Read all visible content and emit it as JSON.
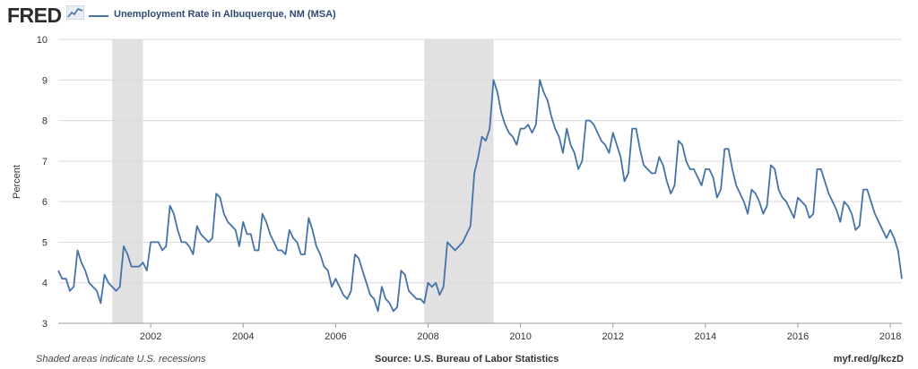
{
  "header": {
    "logo": "FRED",
    "series_title": "Unemployment Rate in Albuquerque, NM (MSA)"
  },
  "footer": {
    "note": "Shaded areas indicate U.S. recessions",
    "source": "Source: U.S. Bureau of Labor Statistics",
    "link": "myf.red/g/kczD"
  },
  "colors": {
    "line": "#4572a7",
    "recession": "#e1e1e1",
    "grid": "#d9d9d9"
  },
  "chart_data": {
    "type": "line",
    "title": "Unemployment Rate in Albuquerque, NM (MSA)",
    "xlabel": "",
    "ylabel": "Percent",
    "ylim": [
      3,
      10
    ],
    "xlim": [
      2000.0,
      2018.25
    ],
    "yticks": [
      "3",
      "4",
      "5",
      "6",
      "7",
      "8",
      "9",
      "10"
    ],
    "xticks": [
      "2002",
      "2004",
      "2006",
      "2008",
      "2010",
      "2012",
      "2014",
      "2016",
      "2018"
    ],
    "grid": true,
    "recessions": [
      [
        2001.1667,
        2001.8333
      ],
      [
        2007.9167,
        2009.4167
      ]
    ],
    "series": [
      {
        "name": "Unemployment Rate in Albuquerque, NM (MSA)",
        "start": 2000.0,
        "step_months": 1,
        "values": [
          4.3,
          4.1,
          4.1,
          3.8,
          3.9,
          4.8,
          4.5,
          4.3,
          4.0,
          3.9,
          3.8,
          3.5,
          4.2,
          4.0,
          3.9,
          3.8,
          3.9,
          4.9,
          4.7,
          4.4,
          4.4,
          4.4,
          4.5,
          4.3,
          5.0,
          5.0,
          5.0,
          4.8,
          4.9,
          5.9,
          5.7,
          5.3,
          5.0,
          5.0,
          4.9,
          4.7,
          5.4,
          5.2,
          5.1,
          5.0,
          5.1,
          6.2,
          6.1,
          5.7,
          5.5,
          5.4,
          5.3,
          4.9,
          5.5,
          5.2,
          5.2,
          4.8,
          4.8,
          5.7,
          5.5,
          5.2,
          5.0,
          4.8,
          4.8,
          4.7,
          5.3,
          5.1,
          5.0,
          4.7,
          4.7,
          5.6,
          5.3,
          4.9,
          4.7,
          4.4,
          4.3,
          3.9,
          4.1,
          3.9,
          3.7,
          3.6,
          3.8,
          4.7,
          4.6,
          4.3,
          4.0,
          3.7,
          3.6,
          3.3,
          3.9,
          3.6,
          3.5,
          3.3,
          3.4,
          4.3,
          4.2,
          3.8,
          3.7,
          3.6,
          3.6,
          3.5,
          4.0,
          3.9,
          4.0,
          3.7,
          3.9,
          5.0,
          4.9,
          4.8,
          4.9,
          5.0,
          5.2,
          5.4,
          6.7,
          7.1,
          7.6,
          7.5,
          7.8,
          9.0,
          8.7,
          8.2,
          7.9,
          7.7,
          7.6,
          7.4,
          7.8,
          7.8,
          7.9,
          7.7,
          7.9,
          9.0,
          8.7,
          8.5,
          8.1,
          7.8,
          7.6,
          7.2,
          7.8,
          7.4,
          7.2,
          6.8,
          7.0,
          8.0,
          8.0,
          7.9,
          7.7,
          7.5,
          7.4,
          7.2,
          7.7,
          7.4,
          7.1,
          6.5,
          6.7,
          7.8,
          7.8,
          7.3,
          6.9,
          6.8,
          6.7,
          6.7,
          7.1,
          6.9,
          6.5,
          6.2,
          6.4,
          7.5,
          7.4,
          7.0,
          6.8,
          6.8,
          6.6,
          6.4,
          6.8,
          6.8,
          6.6,
          6.1,
          6.3,
          7.3,
          7.3,
          6.8,
          6.4,
          6.2,
          6.0,
          5.7,
          6.3,
          6.2,
          6.0,
          5.7,
          5.9,
          6.9,
          6.8,
          6.3,
          6.1,
          6.0,
          5.8,
          5.6,
          6.1,
          6.0,
          5.9,
          5.6,
          5.7,
          6.8,
          6.8,
          6.5,
          6.2,
          6.0,
          5.8,
          5.5,
          6.0,
          5.9,
          5.7,
          5.3,
          5.4,
          6.3,
          6.3,
          6.0,
          5.7,
          5.5,
          5.3,
          5.1,
          5.3,
          5.1,
          4.8,
          4.1
        ]
      }
    ]
  }
}
